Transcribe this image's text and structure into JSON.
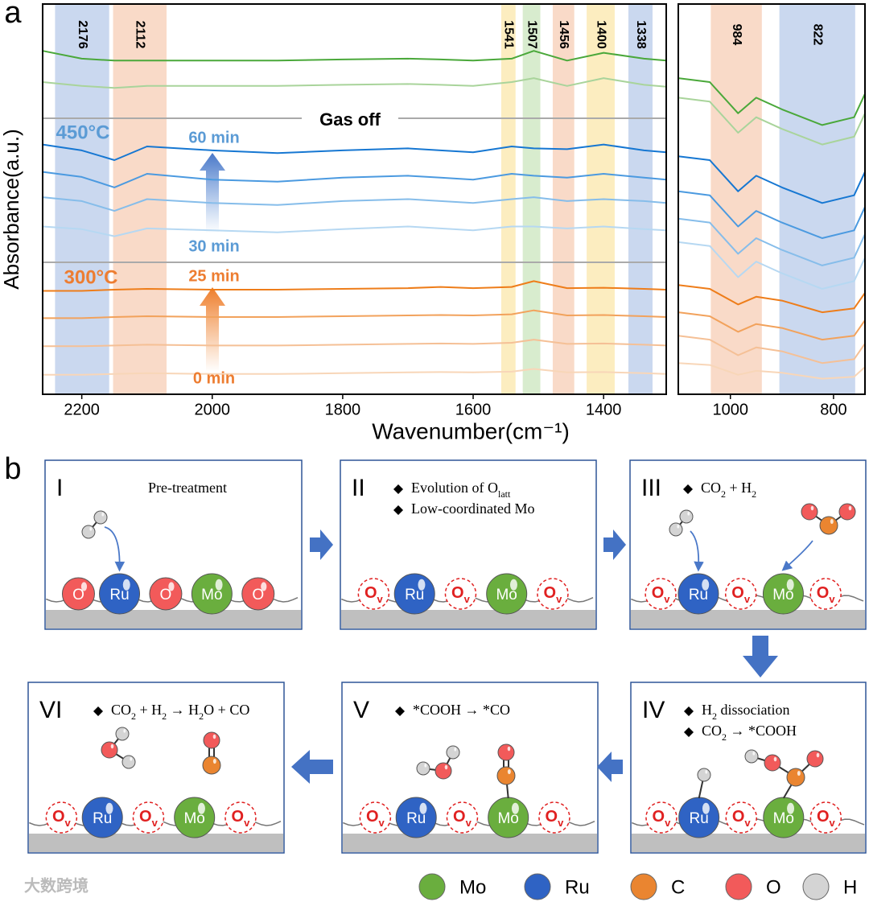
{
  "chart_data": [
    {
      "type": "line",
      "panel_label": "a",
      "y_label": "Absorbance(a.u.)",
      "x_label": "Wavenumber(cm⁻¹)",
      "xlim": [
        2260,
        1304
      ],
      "ylim": [
        0,
        100
      ],
      "xticks": [
        2200,
        2000,
        1800,
        1600,
        1400
      ],
      "bands": [
        {
          "label": "2176",
          "range": [
            2241,
            2158
          ],
          "color": "#cad8ef"
        },
        {
          "label": "2112",
          "range": [
            2152,
            2070
          ],
          "color": "#f9dac8"
        },
        {
          "label": "1541",
          "range": [
            1557,
            1535
          ],
          "color": "#fcedc0"
        },
        {
          "label": "1507",
          "range": [
            1524,
            1497
          ],
          "color": "#d8ecce"
        },
        {
          "label": "1456",
          "range": [
            1478,
            1445
          ],
          "color": "#f9dac8"
        },
        {
          "label": "1400",
          "range": [
            1426,
            1383
          ],
          "color": "#fcedc0"
        },
        {
          "label": "1338",
          "range": [
            1362,
            1325
          ],
          "color": "#cad8ef"
        }
      ],
      "annotations": [
        "Gas off",
        "450°C",
        "60 min",
        "30 min",
        "300°C",
        "25 min",
        "0 min"
      ],
      "x": [
        2260,
        2200,
        2150,
        2100,
        2000,
        1900,
        1800,
        1700,
        1650,
        1600,
        1541,
        1507,
        1456,
        1400,
        1338,
        1304
      ],
      "series": [
        {
          "color": "#4aa83a",
          "values": [
            88,
            86,
            85.5,
            85.5,
            85.5,
            85.5,
            85.8,
            86,
            85.8,
            85.5,
            86,
            88,
            85.5,
            87.5,
            86,
            85.5
          ]
        },
        {
          "color": "#a9d49b",
          "values": [
            80,
            79,
            78.5,
            79,
            79,
            79,
            79.3,
            79.5,
            79.3,
            79,
            80,
            81,
            79,
            81,
            79.3,
            78.8
          ]
        },
        {
          "color": "#1677d2",
          "values": [
            64,
            62.5,
            60,
            63.5,
            62.5,
            61.8,
            62.5,
            63,
            62.5,
            62,
            63.5,
            63,
            62.8,
            64,
            62.5,
            62
          ]
        },
        {
          "color": "#4b9ae0",
          "values": [
            57,
            55.7,
            53,
            56.5,
            55,
            54.5,
            55.5,
            56,
            55.5,
            55,
            56.5,
            56,
            55.5,
            56.5,
            55.5,
            55
          ]
        },
        {
          "color": "#86bdea",
          "values": [
            50.5,
            49.5,
            47,
            50,
            49,
            48.5,
            49.5,
            50,
            49.5,
            49,
            50,
            50.5,
            49.5,
            50,
            49.5,
            49
          ]
        },
        {
          "color": "#b6d8f2",
          "values": [
            43,
            42.3,
            40.5,
            42.5,
            42,
            41.5,
            42.3,
            43,
            42.5,
            42,
            43,
            43,
            42.5,
            43,
            42.3,
            42
          ]
        },
        {
          "color": "#ee7d1a",
          "values": [
            26.5,
            26.5,
            26.8,
            27,
            26.8,
            26.8,
            27,
            27.2,
            27.5,
            27.2,
            27.5,
            29,
            27.2,
            27.3,
            27,
            26.8
          ]
        },
        {
          "color": "#f2a25c",
          "values": [
            19.5,
            19.5,
            19.8,
            20,
            19.8,
            19.8,
            20,
            20.2,
            20.3,
            20.2,
            20.5,
            21.5,
            20.2,
            20.3,
            20,
            19.8
          ]
        },
        {
          "color": "#f5c096",
          "values": [
            12.3,
            12.3,
            12.5,
            12.7,
            12.5,
            12.5,
            12.7,
            12.9,
            13,
            12.9,
            13.2,
            14,
            12.9,
            13,
            12.7,
            12.5
          ]
        },
        {
          "color": "#f8d6b8",
          "values": [
            5,
            5,
            5.2,
            5.4,
            5.2,
            5.2,
            5.4,
            5.6,
            5.7,
            5.6,
            5.8,
            6.5,
            5.6,
            5.7,
            5.4,
            5.2
          ]
        }
      ]
    },
    {
      "type": "line",
      "xlim": [
        1101,
        739
      ],
      "ylim": [
        0,
        100
      ],
      "xticks": [
        1000,
        800
      ],
      "bands": [
        {
          "label": "984",
          "range": [
            1038,
            939
          ],
          "color": "#f9dac8"
        },
        {
          "label": "822",
          "range": [
            905,
            758
          ],
          "color": "#cad8ef"
        }
      ],
      "x": [
        1101,
        1040,
        985,
        950,
        900,
        822,
        760,
        739
      ],
      "series": [
        {
          "color": "#4aa83a",
          "values": [
            81,
            80,
            72,
            76,
            73,
            69,
            71,
            77
          ]
        },
        {
          "color": "#a9d49b",
          "values": [
            76,
            75,
            67,
            71,
            68,
            64,
            66,
            72
          ]
        },
        {
          "color": "#1677d2",
          "values": [
            61,
            60,
            52,
            56,
            53,
            49,
            51,
            57
          ]
        },
        {
          "color": "#4b9ae0",
          "values": [
            52,
            51,
            43,
            47,
            44,
            40,
            42,
            48
          ]
        },
        {
          "color": "#86bdea",
          "values": [
            45,
            44,
            36,
            40,
            37,
            33,
            35,
            41
          ]
        },
        {
          "color": "#b6d8f2",
          "values": [
            39,
            38,
            30,
            34,
            31,
            27,
            29,
            35
          ]
        },
        {
          "color": "#ee7d1a",
          "values": [
            28,
            27,
            23,
            25,
            24,
            21,
            22,
            26
          ]
        },
        {
          "color": "#f2a25c",
          "values": [
            21,
            20,
            16,
            18,
            17,
            14,
            15,
            19
          ]
        },
        {
          "color": "#f5c096",
          "values": [
            15,
            14,
            10,
            12,
            11,
            8,
            9,
            13
          ]
        },
        {
          "color": "#f8d6b8",
          "values": [
            8,
            7.5,
            5,
            6,
            5.5,
            4,
            4.5,
            7
          ]
        }
      ]
    }
  ],
  "diagram": {
    "panel_label": "b",
    "steps": [
      {
        "numeral": "I",
        "lines": [
          [
            "Pre-treatment"
          ]
        ],
        "surface": [
          [
            "O"
          ],
          [
            "Ru"
          ],
          [
            "O"
          ],
          [
            "Mo"
          ],
          [
            "O"
          ]
        ]
      },
      {
        "numeral": "II",
        "lines": [
          [
            "Evolution of O",
            "latt"
          ],
          [
            "Low-coordinated Mo"
          ]
        ],
        "surface": [
          [
            "O",
            "v"
          ],
          [
            "Ru"
          ],
          [
            "O",
            "v"
          ],
          [
            "Mo"
          ],
          [
            "O",
            "v"
          ]
        ]
      },
      {
        "numeral": "III",
        "lines": [
          [
            "CO",
            "2",
            " + H",
            "2"
          ]
        ],
        "surface": [
          [
            "O",
            "v"
          ],
          [
            "Ru"
          ],
          [
            "O",
            "v"
          ],
          [
            "Mo"
          ],
          [
            "O",
            "v"
          ]
        ]
      },
      {
        "numeral": "IV",
        "lines": [
          [
            "H",
            "2",
            " dissociation"
          ],
          [
            "CO",
            "2",
            " → *COOH"
          ]
        ],
        "surface": [
          [
            "O",
            "v"
          ],
          [
            "Ru"
          ],
          [
            "O",
            "v"
          ],
          [
            "Mo"
          ],
          [
            "O",
            "v"
          ]
        ]
      },
      {
        "numeral": "V",
        "lines": [
          [
            "*COOH → *CO"
          ]
        ],
        "surface": [
          [
            "O",
            "v"
          ],
          [
            "Ru"
          ],
          [
            "O",
            "v"
          ],
          [
            "Mo"
          ],
          [
            "O",
            "v"
          ]
        ]
      },
      {
        "numeral": "VI",
        "lines": [
          [
            "CO",
            "2",
            " + H",
            "2",
            " → H",
            "2",
            "O + CO"
          ]
        ],
        "surface": [
          [
            "O",
            "v"
          ],
          [
            "Ru"
          ],
          [
            "O",
            "v"
          ],
          [
            "Mo"
          ],
          [
            "O",
            "v"
          ]
        ]
      }
    ],
    "legend": [
      {
        "label": "Mo",
        "color": "#6aae3e"
      },
      {
        "label": "Ru",
        "color": "#2f63c4"
      },
      {
        "label": "C",
        "color": "#ea8530"
      },
      {
        "label": "O",
        "color": "#f25a5a"
      },
      {
        "label": "H",
        "color": "#d4d4d4"
      }
    ]
  },
  "watermark": "大数跨境"
}
